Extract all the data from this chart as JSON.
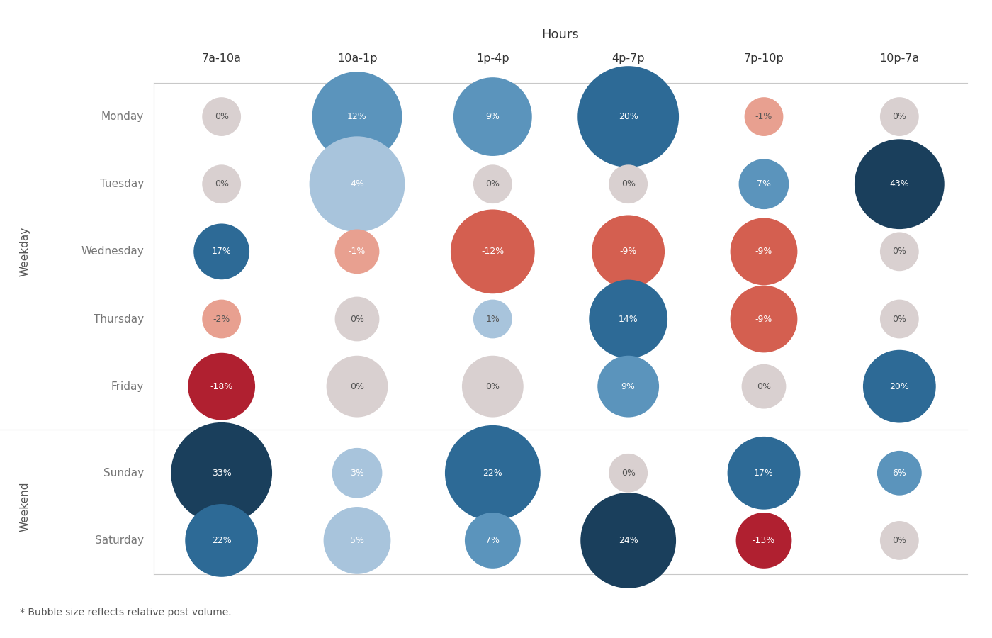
{
  "title": "Hours",
  "col_labels": [
    "7a-10a",
    "10a-1p",
    "1p-4p",
    "4p-7p",
    "7p-10p",
    "10p-7a"
  ],
  "row_labels": [
    "Monday",
    "Tuesday",
    "Wednesday",
    "Thursday",
    "Friday",
    "Sunday",
    "Saturday"
  ],
  "values": [
    [
      0,
      12,
      9,
      20,
      -1,
      0
    ],
    [
      0,
      4,
      0,
      0,
      7,
      43
    ],
    [
      17,
      -1,
      -12,
      -9,
      -9,
      0
    ],
    [
      -2,
      0,
      1,
      14,
      -9,
      0
    ],
    [
      -18,
      0,
      0,
      9,
      0,
      20
    ],
    [
      33,
      3,
      22,
      0,
      17,
      6
    ],
    [
      22,
      5,
      7,
      24,
      -13,
      0
    ]
  ],
  "bubble_sizes": [
    [
      15,
      60,
      50,
      70,
      15,
      15
    ],
    [
      15,
      65,
      15,
      15,
      25,
      60
    ],
    [
      30,
      20,
      55,
      45,
      40,
      15
    ],
    [
      15,
      20,
      15,
      50,
      40,
      15
    ],
    [
      40,
      35,
      35,
      35,
      20,
      45
    ],
    [
      70,
      25,
      65,
      15,
      45,
      20
    ],
    [
      45,
      40,
      30,
      65,
      30,
      15
    ]
  ],
  "bg_color": "#ffffff",
  "grid_color": "#c8c8c8",
  "neutral_color": "#d9d0d0",
  "positive_colors": [
    "#a8c4dc",
    "#5b94bc",
    "#2d6a96",
    "#1a3f5c"
  ],
  "negative_colors": [
    "#e8a090",
    "#d45f50",
    "#b02030",
    "#7a1020"
  ],
  "footnote": "* Bubble size reflects relative post volume.",
  "weekday_label": "Weekday",
  "weekend_label": "Weekend"
}
